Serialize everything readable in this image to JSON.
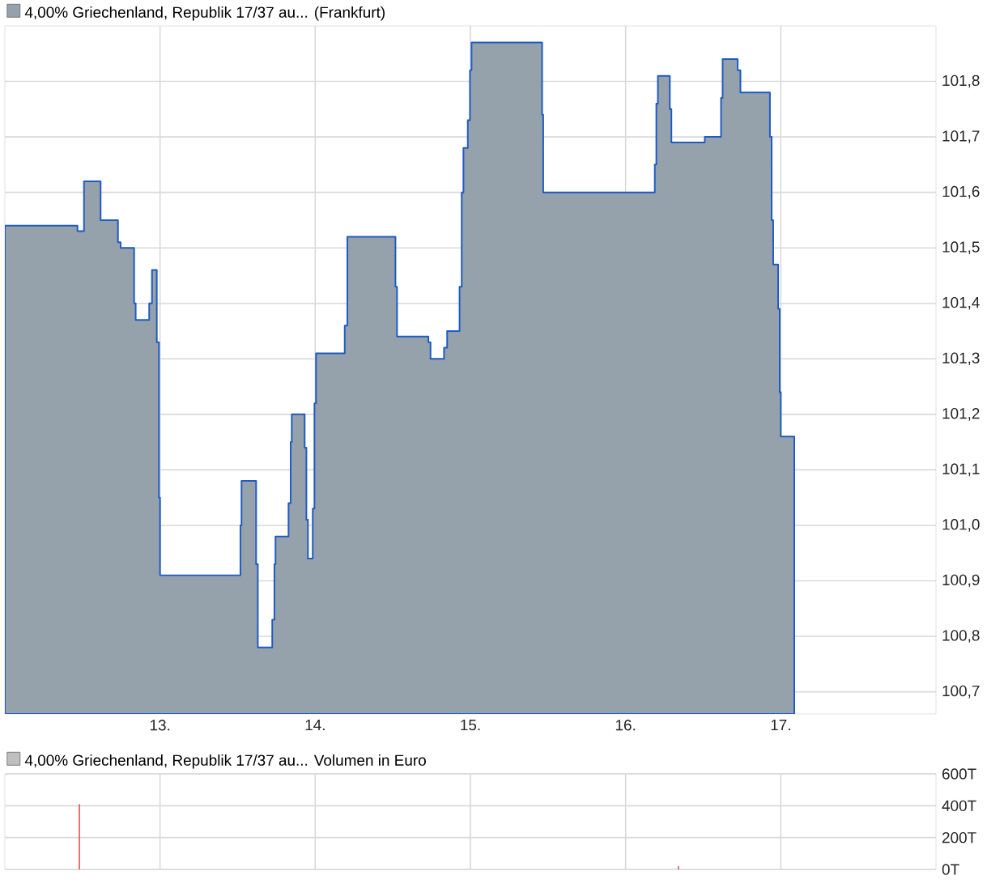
{
  "chart_data": [
    {
      "type": "area",
      "legend": "top left",
      "grid": true,
      "series": [
        {
          "name": "4,00% Griechenland, Republik 17/37 au... (Frankfurt)",
          "color": "#96a2ab",
          "x": [
            12.0,
            12.468,
            12.51,
            12.617,
            12.729,
            12.746,
            12.833,
            12.843,
            12.93,
            12.948,
            12.979,
            12.993,
            13.0,
            13.518,
            13.525,
            13.619,
            13.63,
            13.723,
            13.737,
            13.744,
            13.828,
            13.842,
            13.849,
            13.932,
            13.943,
            13.953,
            13.984,
            13.995,
            14.005,
            14.19,
            14.207,
            14.517,
            14.527,
            14.729,
            14.743,
            14.83,
            14.85,
            14.93,
            14.944,
            14.955,
            14.983,
            14.997,
            15.007,
            15.462,
            15.469,
            16.188,
            16.198,
            16.208,
            16.285,
            16.295,
            16.51,
            16.615,
            16.625,
            16.722,
            16.74,
            16.93,
            16.941,
            16.951,
            16.983,
            16.993,
            17.0,
            17.087
          ],
          "values": [
            101.54,
            101.53,
            101.62,
            101.55,
            101.51,
            101.5,
            101.4,
            101.37,
            101.4,
            101.46,
            101.33,
            101.05,
            100.91,
            101.0,
            101.08,
            100.93,
            100.78,
            100.83,
            100.93,
            100.98,
            101.04,
            101.15,
            101.2,
            101.14,
            101.01,
            100.94,
            101.03,
            101.22,
            101.31,
            101.36,
            101.52,
            101.43,
            101.34,
            101.33,
            101.3,
            101.32,
            101.35,
            101.43,
            101.6,
            101.68,
            101.73,
            101.82,
            101.87,
            101.74,
            101.6,
            101.65,
            101.76,
            101.81,
            101.75,
            101.69,
            101.7,
            101.77,
            101.84,
            101.82,
            101.78,
            101.7,
            101.55,
            101.47,
            101.39,
            101.24,
            101.16,
            101.16
          ]
        }
      ],
      "xlim": [
        12,
        18
      ],
      "ylim": [
        100.66,
        101.9
      ],
      "xticks": [
        {
          "value": 13,
          "label": "13."
        },
        {
          "value": 14,
          "label": "14."
        },
        {
          "value": 15,
          "label": "15."
        },
        {
          "value": 16,
          "label": "16."
        },
        {
          "value": 17,
          "label": "17."
        }
      ],
      "yticks": [
        {
          "value": 100.7,
          "label": "100,7"
        },
        {
          "value": 100.8,
          "label": "100,8"
        },
        {
          "value": 100.9,
          "label": "100,9"
        },
        {
          "value": 101.0,
          "label": "101,0"
        },
        {
          "value": 101.1,
          "label": "101,1"
        },
        {
          "value": 101.2,
          "label": "101,2"
        },
        {
          "value": 101.3,
          "label": "101,3"
        },
        {
          "value": 101.4,
          "label": "101,4"
        },
        {
          "value": 101.5,
          "label": "101,5"
        },
        {
          "value": 101.6,
          "label": "101,6"
        },
        {
          "value": 101.7,
          "label": "101,7"
        },
        {
          "value": 101.8,
          "label": "101,8"
        }
      ]
    },
    {
      "type": "bar",
      "title": "4,00% Griechenland, Republik 17/37 au... Volumen in Euro",
      "grid": true,
      "tick_labels": "y",
      "series": [
        {
          "color": "#e05050",
          "x": [
            12.48,
            16.34
          ],
          "values": [
            410,
            20
          ]
        }
      ],
      "xlim": [
        12,
        18
      ],
      "ylim": [
        0,
        600
      ],
      "xticks": [
        {
          "value": 13,
          "label": null
        },
        {
          "value": 14,
          "label": null
        },
        {
          "value": 15,
          "label": null
        },
        {
          "value": 16,
          "label": null
        },
        {
          "value": 17,
          "label": null
        }
      ],
      "yticks": [
        {
          "value": 0,
          "label": "0T"
        },
        {
          "value": 200,
          "label": "200T"
        },
        {
          "value": 400,
          "label": "400T"
        },
        {
          "value": 600,
          "label": "600T"
        }
      ]
    }
  ]
}
